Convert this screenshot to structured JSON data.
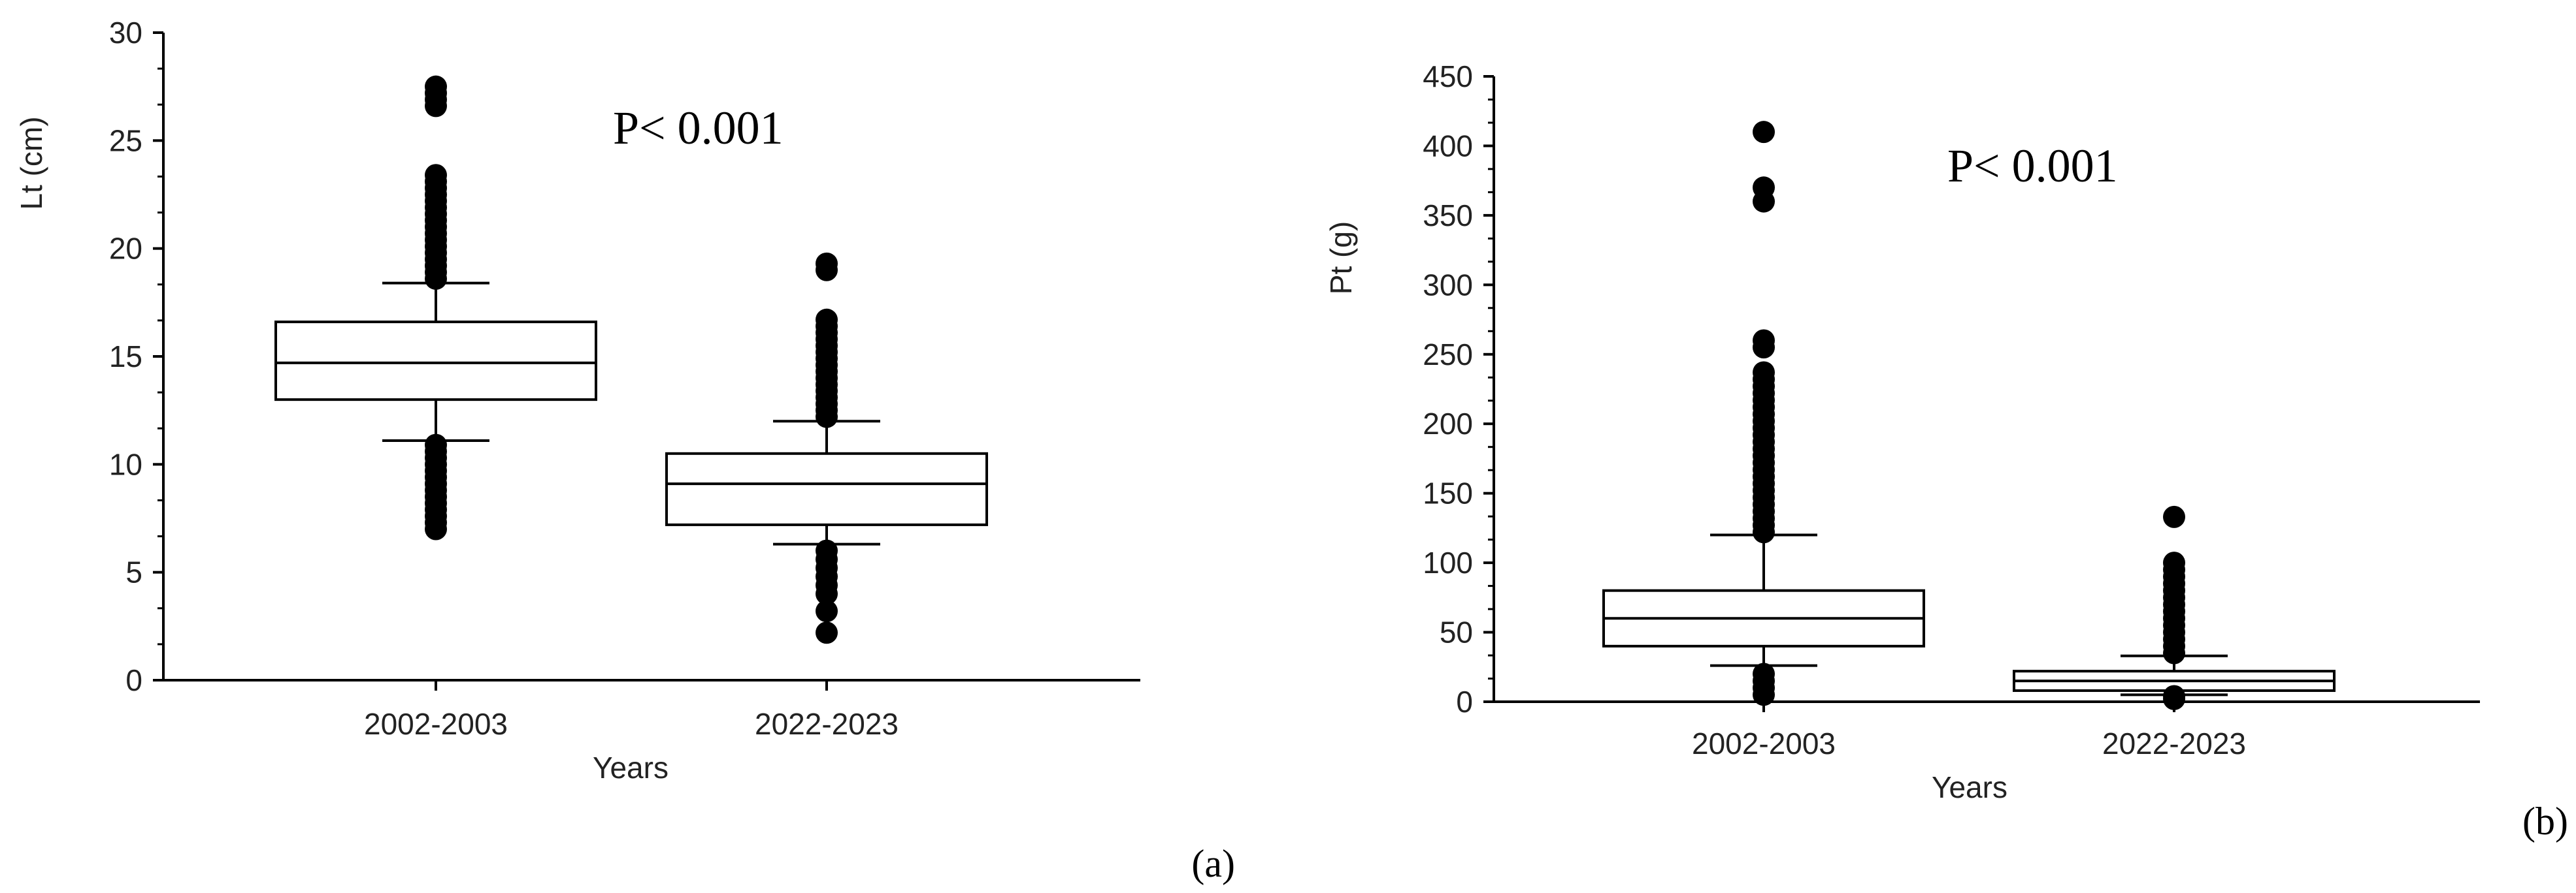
{
  "chart_data": [
    {
      "type": "box",
      "panel_label": "(a)",
      "annotation": "P< 0.001",
      "xlabel": "Years",
      "ylabel": "Lt (cm)",
      "ylim": [
        0,
        30
      ],
      "yticks": [
        0,
        5,
        10,
        15,
        20,
        25,
        30
      ],
      "grid": false,
      "categories": [
        "2002-2003",
        "2022-2023"
      ],
      "boxes": [
        {
          "category": "2002-2003",
          "whisker_low": 11.1,
          "q1": 13.0,
          "median": 14.7,
          "q3": 16.6,
          "whisker_high": 18.4,
          "outliers": [
            7.0,
            7.3,
            7.6,
            7.9,
            8.2,
            8.5,
            8.8,
            9.1,
            9.4,
            9.7,
            10.0,
            10.3,
            10.6,
            10.9,
            18.6,
            18.9,
            19.2,
            19.5,
            19.8,
            20.1,
            20.4,
            20.7,
            21.0,
            21.3,
            21.6,
            21.9,
            22.2,
            22.5,
            22.8,
            23.1,
            23.4,
            26.6,
            26.9,
            27.2,
            27.5
          ]
        },
        {
          "category": "2022-2023",
          "whisker_low": 6.3,
          "q1": 7.2,
          "median": 9.1,
          "q3": 10.5,
          "whisker_high": 12.0,
          "outliers": [
            2.2,
            3.2,
            4.0,
            4.4,
            4.8,
            5.2,
            5.6,
            6.0,
            12.2,
            12.5,
            12.8,
            13.1,
            13.4,
            13.7,
            14.0,
            14.3,
            14.6,
            14.9,
            15.2,
            15.5,
            15.8,
            16.1,
            16.4,
            16.7,
            19.0,
            19.3
          ]
        }
      ]
    },
    {
      "type": "box",
      "panel_label": "(b)",
      "annotation": "P< 0.001",
      "xlabel": "Years",
      "ylabel": "Pt (g)",
      "ylim": [
        0,
        450
      ],
      "yticks": [
        0,
        50,
        100,
        150,
        200,
        250,
        300,
        350,
        400,
        450
      ],
      "grid": false,
      "categories": [
        "2002-2003",
        "2022-2023"
      ],
      "boxes": [
        {
          "category": "2002-2003",
          "whisker_low": 26,
          "q1": 40,
          "median": 60,
          "q3": 80,
          "whisker_high": 120,
          "outliers": [
            5,
            10,
            15,
            20,
            122,
            127,
            132,
            137,
            142,
            147,
            152,
            157,
            162,
            167,
            172,
            177,
            182,
            187,
            192,
            197,
            202,
            207,
            212,
            217,
            222,
            227,
            232,
            237,
            255,
            260,
            360,
            370,
            410
          ]
        },
        {
          "category": "2022-2023",
          "whisker_low": 5,
          "q1": 8,
          "median": 15,
          "q3": 22,
          "whisker_high": 33,
          "outliers": [
            2,
            4,
            35,
            40,
            45,
            50,
            55,
            60,
            65,
            70,
            75,
            80,
            85,
            90,
            95,
            100,
            133
          ]
        }
      ]
    }
  ]
}
